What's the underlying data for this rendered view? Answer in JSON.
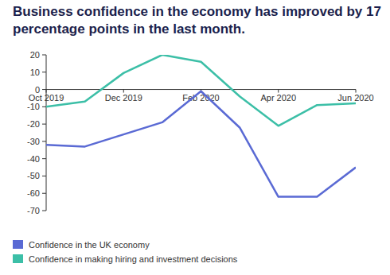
{
  "chart_data": {
    "type": "line",
    "title": "Business confidence in the economy has improved by 17 percentage points in the last month.",
    "categories": [
      "Oct 2019",
      null,
      "Dec 2019",
      null,
      "Feb 2020",
      null,
      "Apr 2020",
      null,
      "Jun 2020"
    ],
    "series": [
      {
        "name": "Confidence in the UK economy",
        "color": "#5a6ad4",
        "values": [
          -32,
          -33,
          -26,
          -19,
          -1,
          -22,
          -62,
          -62,
          -45
        ]
      },
      {
        "name": "Confidence in making hiring and investment decisions",
        "color": "#3cbfa7",
        "values": [
          -10,
          -7,
          9.5,
          20,
          16,
          -4,
          -21,
          -9,
          -8
        ]
      }
    ],
    "ylim": [
      -70,
      20
    ],
    "yticks": [
      20,
      10,
      0,
      -10,
      -20,
      -30,
      -40,
      -50,
      -60,
      -70
    ],
    "legend": "bottom"
  }
}
